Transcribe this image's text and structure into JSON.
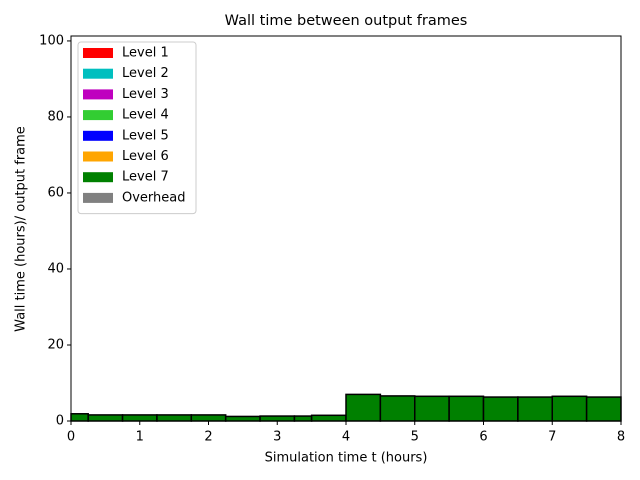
{
  "chart_data": {
    "type": "histogram",
    "stacked": true,
    "title": "Wall time between output frames",
    "xlabel": "Simulation time t (hours)",
    "ylabel": "Wall time (hours)/ output frame",
    "bins": [
      0,
      0.25,
      0.75,
      1.25,
      1.75,
      2.25,
      2.75,
      3.25,
      3.5,
      4,
      4.5,
      5,
      5.5,
      6,
      6.5,
      7,
      7.5,
      8
    ],
    "series": [
      {
        "name": "Level 1",
        "color": "#ff0000",
        "values": [
          0,
          0,
          0,
          0,
          0,
          0,
          0,
          0,
          0,
          0,
          0,
          0,
          0,
          0,
          0,
          0,
          0
        ]
      },
      {
        "name": "Level 2",
        "color": "#00bfbf",
        "values": [
          0,
          0,
          0,
          0,
          0,
          0,
          0,
          0,
          0,
          0,
          0,
          0,
          0,
          0,
          0,
          0,
          0
        ]
      },
      {
        "name": "Level 3",
        "color": "#bf00bf",
        "values": [
          0,
          0,
          0,
          0,
          0,
          0,
          0,
          0,
          0,
          0,
          0,
          0,
          0,
          0,
          0,
          0,
          0
        ]
      },
      {
        "name": "Level 4",
        "color": "#32cd32",
        "values": [
          0,
          0,
          0,
          0,
          0,
          0,
          0,
          0,
          0,
          0,
          0,
          0,
          0,
          0,
          0,
          0,
          0
        ]
      },
      {
        "name": "Level 5",
        "color": "#0000ff",
        "values": [
          0,
          0,
          0,
          0,
          0,
          0,
          0,
          0,
          0,
          0,
          0,
          0,
          0,
          0,
          0,
          0,
          0
        ]
      },
      {
        "name": "Level 6",
        "color": "#ffa500",
        "values": [
          0,
          0,
          0,
          0,
          0,
          0,
          0,
          0,
          0,
          0,
          0,
          0,
          0,
          0,
          0,
          0,
          0
        ]
      },
      {
        "name": "Level 7",
        "color": "#008000",
        "values": [
          1.9,
          1.6,
          1.6,
          1.6,
          1.6,
          1.2,
          1.3,
          1.3,
          1.5,
          7.0,
          6.6,
          6.5,
          6.5,
          6.3,
          6.3,
          6.5,
          6.3
        ]
      },
      {
        "name": "Overhead",
        "color": "#808080",
        "values": [
          0,
          0,
          0,
          0,
          0,
          0,
          0,
          0,
          0,
          0,
          0,
          0,
          0,
          0,
          0,
          0,
          0
        ]
      }
    ],
    "xlim": [
      0,
      8
    ],
    "xticks": [
      0,
      1,
      2,
      3,
      4,
      5,
      6,
      7,
      8
    ],
    "ylim": [
      0,
      101.3
    ],
    "yticks": [
      0,
      20,
      40,
      60,
      80,
      100
    ],
    "legend": "upper left"
  }
}
